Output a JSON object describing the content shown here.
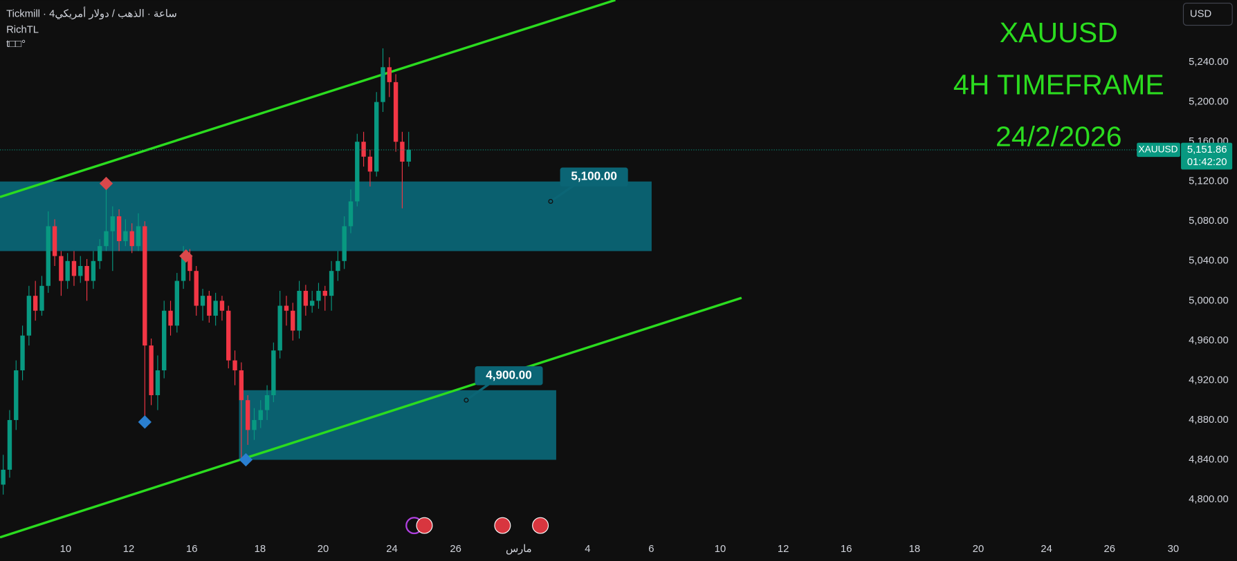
{
  "header": {
    "source": "Tickmill · 4ساعة · الذهب / دولار أمريكي",
    "indicator": "RichTL",
    "status": "t□□°",
    "currency": "USD"
  },
  "chart_data": {
    "type": "candlestick",
    "title": "XAUUSD",
    "subtitle": "4H TIMEFRAME",
    "date": "24/2/2026",
    "symbol": "XAUUSD",
    "up_color": "#089981",
    "down_color": "#f23645",
    "grid": false,
    "open": [
      4815,
      4830,
      4880,
      4930,
      4965,
      5005,
      4990,
      5015,
      5075,
      5045,
      5020,
      5040,
      5025,
      5035,
      5020,
      5040,
      5055,
      5070,
      5085,
      5060,
      5070,
      5055,
      5075,
      4955,
      4905,
      4930,
      4990,
      4975,
      5020,
      5045,
      5030,
      4995,
      5005,
      4985,
      5000,
      4990,
      4940,
      4930,
      4900,
      4870,
      4880,
      4890,
      4905,
      4950,
      4995,
      4990,
      4970,
      5010,
      4995,
      5000,
      5010,
      5005,
      5030,
      5040,
      5075,
      5100,
      5160,
      5145,
      5130,
      5200,
      5235,
      5220,
      5160,
      5140
    ],
    "high": [
      4845,
      4890,
      4940,
      4975,
      5015,
      5020,
      5025,
      5090,
      5082,
      5050,
      5048,
      5050,
      5045,
      5042,
      5050,
      5062,
      5118,
      5095,
      5092,
      5082,
      5078,
      5088,
      5080,
      4962,
      4945,
      5000,
      5000,
      5028,
      5055,
      5052,
      5035,
      5012,
      5010,
      5008,
      5005,
      4995,
      4950,
      4938,
      4905,
      4892,
      4900,
      4915,
      4958,
      5010,
      5005,
      4998,
      5020,
      5016,
      5010,
      5018,
      5015,
      5040,
      5050,
      5085,
      5112,
      5168,
      5170,
      5152,
      5210,
      5254,
      5245,
      5228,
      5170,
      5170
    ],
    "low": [
      4805,
      4822,
      4870,
      4920,
      4955,
      4980,
      4985,
      5008,
      5035,
      5005,
      5012,
      5015,
      5018,
      5000,
      5012,
      5032,
      5050,
      5030,
      5050,
      5055,
      5048,
      5050,
      4880,
      4895,
      4890,
      4922,
      4965,
      4968,
      5012,
      5020,
      4985,
      4980,
      4978,
      4975,
      4980,
      4932,
      4915,
      4840,
      4855,
      4860,
      4872,
      4880,
      4898,
      4942,
      4975,
      4960,
      4962,
      4985,
      4988,
      4992,
      4990,
      4990,
      5020,
      5032,
      5068,
      5095,
      5135,
      5115,
      5125,
      5190,
      5205,
      5150,
      5093,
      5135
    ],
    "close": [
      4830,
      4880,
      4930,
      4965,
      5005,
      4990,
      5015,
      5075,
      5045,
      5020,
      5040,
      5025,
      5035,
      5020,
      5040,
      5055,
      5070,
      5085,
      5060,
      5070,
      5055,
      5075,
      4955,
      4905,
      4930,
      4990,
      4975,
      5020,
      5045,
      5030,
      4995,
      5005,
      4985,
      5000,
      4990,
      4940,
      4930,
      4900,
      4870,
      4880,
      4890,
      4905,
      4950,
      4995,
      4990,
      4970,
      5010,
      4995,
      5000,
      5010,
      5005,
      5030,
      5040,
      5075,
      5100,
      5160,
      5145,
      5130,
      5200,
      5235,
      5220,
      5160,
      5140,
      5152
    ],
    "xlim": [
      -0.5,
      183
    ],
    "xticks": [
      {
        "value": 9.7,
        "label": "10"
      },
      {
        "value": 19.5,
        "label": "12"
      },
      {
        "value": 29.3,
        "label": "16"
      },
      {
        "value": 39.9,
        "label": "18"
      },
      {
        "value": 49.7,
        "label": "20"
      },
      {
        "value": 60.4,
        "label": "24"
      },
      {
        "value": 70.3,
        "label": "26"
      },
      {
        "value": 80.1,
        "label": "مارس"
      },
      {
        "value": 90.8,
        "label": "4"
      },
      {
        "value": 100.7,
        "label": "6"
      },
      {
        "value": 111.4,
        "label": "10"
      },
      {
        "value": 121.2,
        "label": "12"
      },
      {
        "value": 131,
        "label": "16"
      },
      {
        "value": 141.6,
        "label": "18"
      },
      {
        "value": 151.5,
        "label": "20"
      },
      {
        "value": 162.1,
        "label": "24"
      },
      {
        "value": 171.9,
        "label": "26"
      },
      {
        "value": 181.8,
        "label": "30"
      }
    ],
    "ylim": [
      4759.6,
      5302.6
    ],
    "yticks": [
      {
        "value": 4800,
        "label": "4,800.00"
      },
      {
        "value": 4840,
        "label": "4,840.00"
      },
      {
        "value": 4880,
        "label": "4,880.00"
      },
      {
        "value": 4920,
        "label": "4,920.00"
      },
      {
        "value": 4960,
        "label": "4,960.00"
      },
      {
        "value": 5000,
        "label": "5,000.00"
      },
      {
        "value": 5040,
        "label": "5,040.00"
      },
      {
        "value": 5080,
        "label": "5,080.00"
      },
      {
        "value": 5120,
        "label": "5,120.00"
      },
      {
        "value": 5160,
        "label": "5,160.00"
      },
      {
        "value": 5200,
        "label": "5,200.00"
      },
      {
        "value": 5240,
        "label": "5,240.00"
      }
    ],
    "last_price": {
      "value": 5151.86,
      "label": "5,151.86"
    },
    "countdown": "01:42:20",
    "zones": [
      {
        "top": 5120,
        "bottom": 5050,
        "price": 5100,
        "label": "5,100.00"
      },
      {
        "top": 4910,
        "bottom": 4840,
        "price": 4900,
        "label": "4,900.00"
      }
    ],
    "markers": [
      {
        "candle": 16,
        "price": 5118,
        "color": "#d9484b"
      },
      {
        "candle": 28.4,
        "price": 5045,
        "color": "#d9484b"
      },
      {
        "candle": 22,
        "price": 4878,
        "color": "#2a7fd0"
      },
      {
        "candle": 37.7,
        "price": 4840,
        "color": "#2a7fd0"
      }
    ]
  }
}
